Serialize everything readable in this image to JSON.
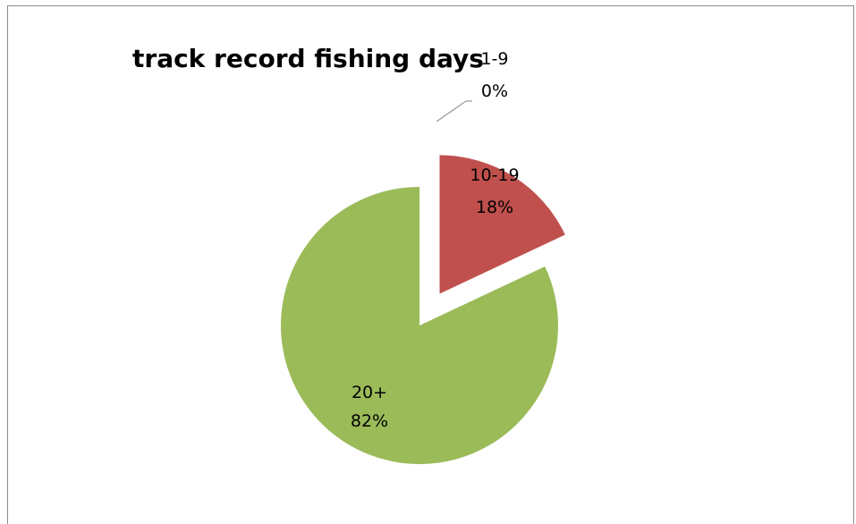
{
  "chart_data": {
    "type": "pie",
    "title": "track record fishing days",
    "series": [
      {
        "categories": [
          "1-9",
          "10-19",
          "20+"
        ],
        "values": [
          0,
          18,
          82
        ],
        "labels": [
          "0%",
          "18%",
          "82%"
        ],
        "colors": [
          "#4f81bd",
          "#c0504d",
          "#9bbb59"
        ],
        "exploded": [
          true,
          true,
          false
        ]
      }
    ],
    "legend": "none",
    "data_labels": "category and percentage"
  }
}
